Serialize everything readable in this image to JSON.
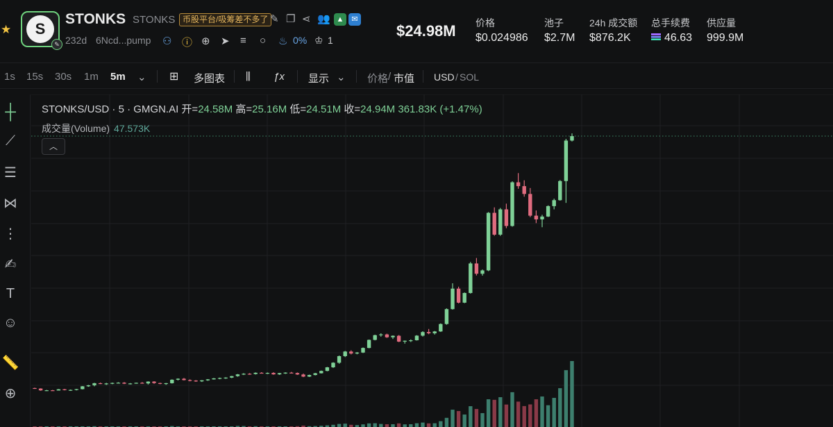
{
  "token": {
    "name": "STONKS",
    "ticker": "STONKS",
    "tag": "币股平台/吸筹差不多了",
    "age": "232d",
    "address": "6Ncd...pump",
    "holders_pct": "0%",
    "count": "1",
    "logo_letter": "S"
  },
  "header": {
    "price": "$24.98M",
    "stats": [
      {
        "label": "价格",
        "value": "$0.024986"
      },
      {
        "label": "池子",
        "value": "$2.7M"
      },
      {
        "label": "24h 成交额",
        "value": "$876.2K"
      },
      {
        "label": "总手续费",
        "value": "46.63"
      },
      {
        "label": "供应量",
        "value": "999.9M"
      }
    ]
  },
  "toolbar": {
    "intervals": [
      "1s",
      "15s",
      "30s",
      "1m",
      "5m"
    ],
    "active_interval": "5m",
    "multi_chart": "多图表",
    "display": "显示",
    "price_label": "价格",
    "slash": "/",
    "mcap_label": "市值",
    "usd_label": "USD",
    "sol_label": "SOL"
  },
  "legend": {
    "symbol": "STONKS/USD · 5 · GMGN.AI",
    "open_label": "开=",
    "open": "24.58M",
    "high_label": "高=",
    "high": "25.16M",
    "low_label": "低=",
    "low": "24.51M",
    "close_label": "收=",
    "close": "24.94M",
    "change": "361.83K (+1.47%)",
    "volume_label": "成交量(Volume)",
    "volume": "47.573K"
  },
  "colors": {
    "up": "#7fd197",
    "down": "#e06c7f",
    "vol_up": "#3d7f6e",
    "vol_down": "#8a3a48",
    "accent_blue": "#6aa7e8",
    "tag_gold": "#e3b45c"
  },
  "chart_data": {
    "type": "candlestick",
    "series": [
      {
        "name": "STONKS/USD",
        "ohlc": [
          [
            4.64,
            4.67,
            4.57,
            4.6
          ],
          [
            4.6,
            4.62,
            4.42,
            4.45
          ],
          [
            4.45,
            4.49,
            4.4,
            4.46
          ],
          [
            4.46,
            4.49,
            4.42,
            4.44
          ],
          [
            4.44,
            4.56,
            4.44,
            4.54
          ],
          [
            4.54,
            4.57,
            4.45,
            4.47
          ],
          [
            4.47,
            4.52,
            4.42,
            4.49
          ],
          [
            4.49,
            4.57,
            4.45,
            4.55
          ],
          [
            4.55,
            4.8,
            4.53,
            4.78
          ],
          [
            4.78,
            4.89,
            4.74,
            4.86
          ],
          [
            4.86,
            5.06,
            4.78,
            5.03
          ],
          [
            5.03,
            5.08,
            4.96,
            4.98
          ],
          [
            4.98,
            5.06,
            4.89,
            5.01
          ],
          [
            5.01,
            5.08,
            4.95,
            5.05
          ],
          [
            5.05,
            5.11,
            5.01,
            5.07
          ],
          [
            5.07,
            5.12,
            4.96,
            4.99
          ],
          [
            4.99,
            5.04,
            4.93,
            5.01
          ],
          [
            5.01,
            5.08,
            4.99,
            5.06
          ],
          [
            5.06,
            5.12,
            4.99,
            5.01
          ],
          [
            5.01,
            5.18,
            4.93,
            5.16
          ],
          [
            5.16,
            5.19,
            4.98,
            5.04
          ],
          [
            5.04,
            5.07,
            4.95,
            4.98
          ],
          [
            4.98,
            5.05,
            4.9,
            5.03
          ],
          [
            5.03,
            5.34,
            5.0,
            5.31
          ],
          [
            5.31,
            5.42,
            5.25,
            5.39
          ],
          [
            5.39,
            5.45,
            5.25,
            5.28
          ],
          [
            5.28,
            5.34,
            5.18,
            5.24
          ],
          [
            5.24,
            5.28,
            5.14,
            5.18
          ],
          [
            5.18,
            5.28,
            5.13,
            5.26
          ],
          [
            5.26,
            5.36,
            5.22,
            5.34
          ],
          [
            5.34,
            5.45,
            5.32,
            5.42
          ],
          [
            5.42,
            5.48,
            5.35,
            5.45
          ],
          [
            5.45,
            5.51,
            5.38,
            5.48
          ],
          [
            5.48,
            5.62,
            5.44,
            5.6
          ],
          [
            5.6,
            5.77,
            5.55,
            5.74
          ],
          [
            5.74,
            5.84,
            5.69,
            5.79
          ],
          [
            5.79,
            5.84,
            5.71,
            5.77
          ],
          [
            5.77,
            5.9,
            5.73,
            5.87
          ],
          [
            5.87,
            5.92,
            5.82,
            5.84
          ],
          [
            5.84,
            5.89,
            5.77,
            5.86
          ],
          [
            5.86,
            5.91,
            5.71,
            5.74
          ],
          [
            5.74,
            5.86,
            5.7,
            5.84
          ],
          [
            5.84,
            5.91,
            5.78,
            5.88
          ],
          [
            5.88,
            5.94,
            5.82,
            5.85
          ],
          [
            5.85,
            5.89,
            5.7,
            5.73
          ],
          [
            5.73,
            5.81,
            5.52,
            5.56
          ],
          [
            5.56,
            5.72,
            5.53,
            5.69
          ],
          [
            5.69,
            5.86,
            5.66,
            5.83
          ],
          [
            5.83,
            6.05,
            5.81,
            6.02
          ],
          [
            6.02,
            6.34,
            5.99,
            6.31
          ],
          [
            6.31,
            6.72,
            6.26,
            6.68
          ],
          [
            6.68,
            7.26,
            6.6,
            7.21
          ],
          [
            7.21,
            7.63,
            7.14,
            7.58
          ],
          [
            7.58,
            7.68,
            7.35,
            7.42
          ],
          [
            7.42,
            7.54,
            7.36,
            7.5
          ],
          [
            7.5,
            7.91,
            7.46,
            7.87
          ],
          [
            7.87,
            8.55,
            7.84,
            8.52
          ],
          [
            8.52,
            8.94,
            8.48,
            8.9
          ],
          [
            8.9,
            9.05,
            8.78,
            8.96
          ],
          [
            8.96,
            9.02,
            8.68,
            8.73
          ],
          [
            8.73,
            8.88,
            8.59,
            8.85
          ],
          [
            8.85,
            8.91,
            8.34,
            8.38
          ],
          [
            8.38,
            8.47,
            8.22,
            8.45
          ],
          [
            8.45,
            8.56,
            8.35,
            8.49
          ],
          [
            8.49,
            8.9,
            8.47,
            8.86
          ],
          [
            8.86,
            9.22,
            8.79,
            9.15
          ],
          [
            9.15,
            9.4,
            8.98,
            9.05
          ],
          [
            9.05,
            9.24,
            8.95,
            9.2
          ],
          [
            9.2,
            9.85,
            9.16,
            9.8
          ],
          [
            9.8,
            11.06,
            9.74,
            11.0
          ],
          [
            11.0,
            13.08,
            10.96,
            12.65
          ],
          [
            12.65,
            12.81,
            11.46,
            11.52
          ],
          [
            11.52,
            12.34,
            11.48,
            12.3
          ],
          [
            12.3,
            14.8,
            12.25,
            14.68
          ],
          [
            14.68,
            15.12,
            13.71,
            13.85
          ],
          [
            13.85,
            14.19,
            13.7,
            14.12
          ],
          [
            14.12,
            18.82,
            14.06,
            18.76
          ],
          [
            18.76,
            19.2,
            16.91,
            17.0
          ],
          [
            17.0,
            19.15,
            16.9,
            19.04
          ],
          [
            19.04,
            19.5,
            17.52,
            17.7
          ],
          [
            17.7,
            21.3,
            17.64,
            21.22
          ],
          [
            21.22,
            21.96,
            20.7,
            20.91
          ],
          [
            20.91,
            21.38,
            20.06,
            20.28
          ],
          [
            20.28,
            20.76,
            18.41,
            18.53
          ],
          [
            18.53,
            18.95,
            17.93,
            18.23
          ],
          [
            18.23,
            18.6,
            17.6,
            18.46
          ],
          [
            18.46,
            19.36,
            18.42,
            19.3
          ],
          [
            19.3,
            19.9,
            19.04,
            19.78
          ],
          [
            19.78,
            21.4,
            19.74,
            21.32
          ],
          [
            21.32,
            24.72,
            19.56,
            24.58
          ],
          [
            24.58,
            25.16,
            24.51,
            24.94
          ]
        ],
        "volume": [
          0.2,
          0.3,
          0.2,
          0.2,
          0.3,
          0.2,
          0.2,
          0.3,
          0.5,
          0.4,
          0.6,
          0.3,
          0.3,
          0.3,
          0.3,
          0.3,
          0.3,
          0.3,
          0.3,
          0.5,
          0.4,
          0.3,
          0.3,
          0.7,
          0.5,
          0.5,
          0.3,
          0.3,
          0.3,
          0.4,
          0.5,
          0.4,
          0.4,
          0.5,
          0.8,
          0.7,
          0.5,
          0.6,
          0.5,
          0.4,
          0.5,
          0.5,
          0.5,
          0.4,
          0.6,
          1.0,
          0.6,
          0.7,
          0.9,
          1.2,
          1.6,
          2.2,
          2.4,
          1.6,
          1.4,
          1.9,
          2.6,
          2.7,
          2.2,
          2.0,
          2.0,
          2.6,
          1.9,
          2.0,
          2.7,
          3.2,
          2.6,
          2.7,
          4.2,
          6.6,
          12.5,
          11.5,
          9.0,
          15.0,
          13.0,
          10.0,
          20.0,
          19.6,
          21.5,
          16.2,
          25.1,
          18.3,
          15.1,
          16.3,
          20.0,
          22.0,
          15.7,
          21.0,
          28.0,
          41.0,
          47.573
        ],
        "unit_price": "M",
        "unit_volume": "K"
      }
    ],
    "price_axis_visible": [
      1.5,
      28.3
    ],
    "grid": true,
    "last_close": 24.94
  }
}
